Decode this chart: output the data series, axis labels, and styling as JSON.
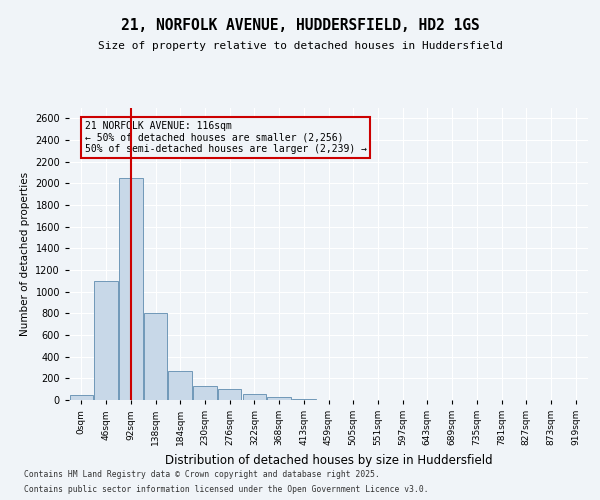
{
  "title": "21, NORFOLK AVENUE, HUDDERSFIELD, HD2 1GS",
  "subtitle": "Size of property relative to detached houses in Huddersfield",
  "xlabel": "Distribution of detached houses by size in Huddersfield",
  "ylabel": "Number of detached properties",
  "bin_labels": [
    "0sqm",
    "46sqm",
    "92sqm",
    "138sqm",
    "184sqm",
    "230sqm",
    "276sqm",
    "322sqm",
    "368sqm",
    "413sqm",
    "459sqm",
    "505sqm",
    "551sqm",
    "597sqm",
    "643sqm",
    "689sqm",
    "735sqm",
    "781sqm",
    "827sqm",
    "873sqm",
    "919sqm"
  ],
  "bar_values": [
    50,
    1100,
    2050,
    800,
    270,
    130,
    100,
    60,
    25,
    10,
    3,
    0,
    0,
    0,
    0,
    0,
    0,
    0,
    0,
    0,
    0
  ],
  "bar_color": "#c8d8e8",
  "bar_edge_color": "#7098b8",
  "vline_color": "#cc0000",
  "ylim": [
    0,
    2700
  ],
  "yticks": [
    0,
    200,
    400,
    600,
    800,
    1000,
    1200,
    1400,
    1600,
    1800,
    2000,
    2200,
    2400,
    2600
  ],
  "annotation_title": "21 NORFOLK AVENUE: 116sqm",
  "annotation_line1": "← 50% of detached houses are smaller (2,256)",
  "annotation_line2": "50% of semi-detached houses are larger (2,239) →",
  "annotation_box_color": "#cc0000",
  "footer_line1": "Contains HM Land Registry data © Crown copyright and database right 2025.",
  "footer_line2": "Contains public sector information licensed under the Open Government Licence v3.0.",
  "bg_color": "#f0f4f8",
  "grid_color": "#ffffff"
}
